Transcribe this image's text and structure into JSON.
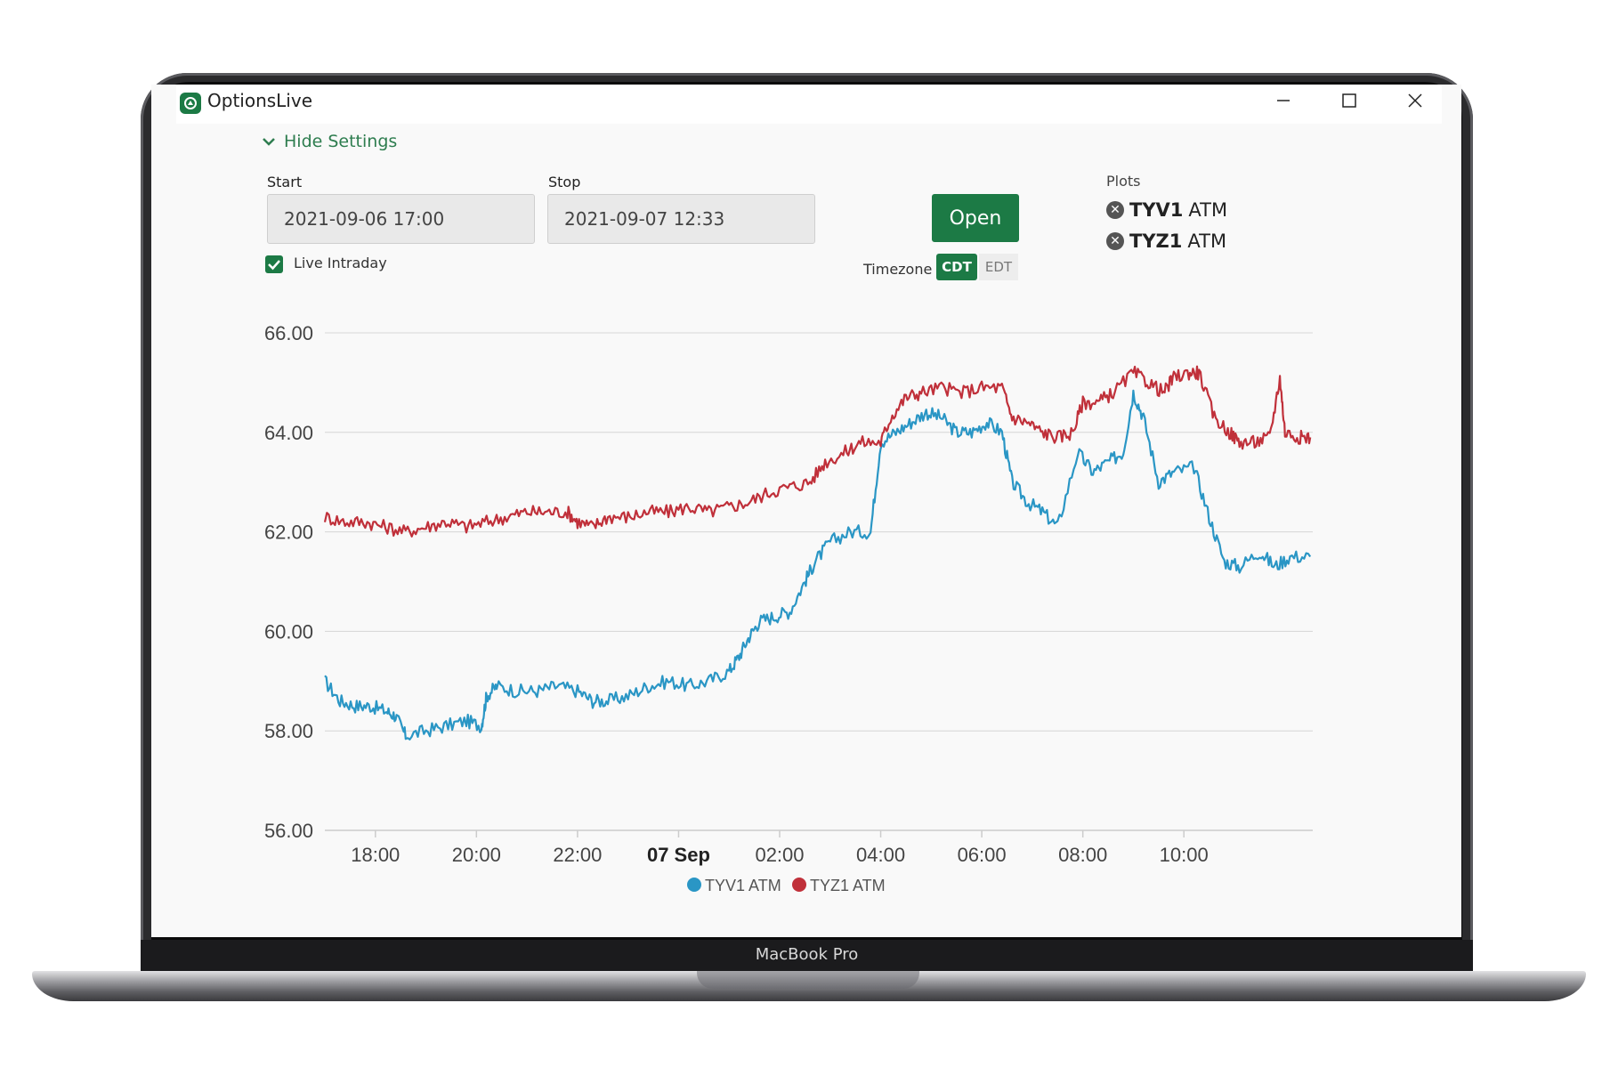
{
  "device": {
    "label": "MacBook Pro"
  },
  "window": {
    "title": "OptionsLive",
    "controls": [
      "minimize-icon",
      "maximize-icon",
      "close-icon"
    ]
  },
  "settings": {
    "toggle_label": "Hide Settings",
    "start_label": "Start",
    "start_value": "2021-09-06 17:00",
    "stop_label": "Stop",
    "stop_value": "2021-09-07 12:33",
    "live_intraday_label": "Live Intraday",
    "live_intraday_checked": true,
    "open_label": "Open",
    "timezone_label": "Timezone",
    "timezone_options": [
      "CDT",
      "EDT"
    ],
    "timezone_selected": "CDT",
    "plots_label": "Plots",
    "plots": [
      {
        "symbol": "TYV1",
        "suffix": "ATM"
      },
      {
        "symbol": "TYZ1",
        "suffix": "ATM"
      }
    ]
  },
  "colors": {
    "accent": "#1c7a45",
    "tyv1": "#2a96c5",
    "tyz1": "#c0303a"
  },
  "chart_data": {
    "type": "line",
    "ylim": [
      56,
      66
    ],
    "y_ticks": [
      "56.00",
      "58.00",
      "60.00",
      "62.00",
      "64.00",
      "66.00"
    ],
    "x_range_hours": [
      17,
      36.55
    ],
    "x_ticks": [
      {
        "label": "18:00",
        "hour": 18,
        "bold": false
      },
      {
        "label": "20:00",
        "hour": 20,
        "bold": false
      },
      {
        "label": "22:00",
        "hour": 22,
        "bold": false
      },
      {
        "label": "07 Sep",
        "hour": 24,
        "bold": true
      },
      {
        "label": "02:00",
        "hour": 26,
        "bold": false
      },
      {
        "label": "04:00",
        "hour": 28,
        "bold": false
      },
      {
        "label": "06:00",
        "hour": 30,
        "bold": false
      },
      {
        "label": "08:00",
        "hour": 32,
        "bold": false
      },
      {
        "label": "10:00",
        "hour": 34,
        "bold": false
      }
    ],
    "grid": true,
    "legend_position": "bottom-center",
    "series": [
      {
        "name": "TYV1 ATM",
        "color": "#2a96c5",
        "points": [
          [
            17.0,
            59.0
          ],
          [
            17.3,
            58.6
          ],
          [
            17.6,
            58.5
          ],
          [
            17.9,
            58.5
          ],
          [
            18.2,
            58.4
          ],
          [
            18.4,
            58.3
          ],
          [
            18.6,
            57.9
          ],
          [
            19.0,
            58.0
          ],
          [
            19.4,
            58.1
          ],
          [
            19.8,
            58.2
          ],
          [
            20.1,
            58.1
          ],
          [
            20.2,
            58.7
          ],
          [
            20.4,
            58.9
          ],
          [
            20.8,
            58.8
          ],
          [
            21.2,
            58.8
          ],
          [
            21.6,
            58.9
          ],
          [
            22.0,
            58.8
          ],
          [
            22.3,
            58.6
          ],
          [
            22.6,
            58.6
          ],
          [
            23.0,
            58.7
          ],
          [
            23.4,
            58.9
          ],
          [
            23.8,
            59.0
          ],
          [
            24.2,
            58.9
          ],
          [
            24.6,
            59.0
          ],
          [
            25.0,
            59.2
          ],
          [
            25.2,
            59.5
          ],
          [
            25.4,
            59.9
          ],
          [
            25.6,
            60.2
          ],
          [
            25.9,
            60.3
          ],
          [
            26.2,
            60.4
          ],
          [
            26.5,
            61.0
          ],
          [
            26.7,
            61.4
          ],
          [
            27.0,
            61.8
          ],
          [
            27.4,
            62.0
          ],
          [
            27.8,
            62.0
          ],
          [
            28.0,
            63.8
          ],
          [
            28.3,
            64.0
          ],
          [
            28.6,
            64.2
          ],
          [
            28.9,
            64.4
          ],
          [
            29.2,
            64.3
          ],
          [
            29.5,
            64.0
          ],
          [
            29.8,
            64.0
          ],
          [
            30.1,
            64.2
          ],
          [
            30.4,
            64.0
          ],
          [
            30.6,
            63.0
          ],
          [
            30.9,
            62.6
          ],
          [
            31.2,
            62.4
          ],
          [
            31.5,
            62.1
          ],
          [
            31.9,
            63.6
          ],
          [
            32.2,
            63.2
          ],
          [
            32.5,
            63.4
          ],
          [
            32.8,
            63.6
          ],
          [
            33.0,
            64.8
          ],
          [
            33.2,
            64.3
          ],
          [
            33.5,
            63.0
          ],
          [
            33.8,
            63.2
          ],
          [
            34.2,
            63.3
          ],
          [
            34.5,
            62.3
          ],
          [
            34.8,
            61.4
          ],
          [
            35.1,
            61.3
          ],
          [
            35.5,
            61.6
          ],
          [
            35.8,
            61.3
          ],
          [
            36.1,
            61.5
          ],
          [
            36.5,
            61.5
          ]
        ]
      },
      {
        "name": "TYZ1 ATM",
        "color": "#c0303a",
        "points": [
          [
            17.0,
            62.3
          ],
          [
            17.4,
            62.2
          ],
          [
            17.8,
            62.2
          ],
          [
            18.2,
            62.1
          ],
          [
            18.6,
            62.0
          ],
          [
            19.0,
            62.1
          ],
          [
            19.4,
            62.2
          ],
          [
            19.8,
            62.1
          ],
          [
            20.2,
            62.2
          ],
          [
            20.6,
            62.3
          ],
          [
            21.0,
            62.4
          ],
          [
            21.4,
            62.4
          ],
          [
            21.8,
            62.4
          ],
          [
            22.0,
            62.2
          ],
          [
            22.3,
            62.1
          ],
          [
            22.6,
            62.3
          ],
          [
            23.0,
            62.3
          ],
          [
            23.4,
            62.4
          ],
          [
            23.8,
            62.4
          ],
          [
            24.2,
            62.5
          ],
          [
            24.6,
            62.4
          ],
          [
            25.0,
            62.5
          ],
          [
            25.4,
            62.6
          ],
          [
            25.8,
            62.8
          ],
          [
            26.2,
            62.9
          ],
          [
            26.6,
            63.0
          ],
          [
            26.9,
            63.4
          ],
          [
            27.3,
            63.6
          ],
          [
            27.6,
            63.8
          ],
          [
            28.0,
            63.8
          ],
          [
            28.2,
            64.3
          ],
          [
            28.5,
            64.7
          ],
          [
            28.8,
            64.8
          ],
          [
            29.2,
            64.9
          ],
          [
            29.6,
            64.8
          ],
          [
            30.0,
            64.9
          ],
          [
            30.4,
            64.9
          ],
          [
            30.6,
            64.3
          ],
          [
            30.9,
            64.2
          ],
          [
            31.2,
            64.0
          ],
          [
            31.5,
            63.9
          ],
          [
            31.8,
            64.0
          ],
          [
            32.0,
            64.6
          ],
          [
            32.3,
            64.6
          ],
          [
            32.6,
            64.8
          ],
          [
            33.0,
            65.2
          ],
          [
            33.3,
            65.0
          ],
          [
            33.6,
            64.8
          ],
          [
            33.8,
            65.1
          ],
          [
            34.1,
            65.2
          ],
          [
            34.3,
            65.2
          ],
          [
            34.6,
            64.3
          ],
          [
            34.9,
            64.0
          ],
          [
            35.1,
            63.8
          ],
          [
            35.4,
            63.8
          ],
          [
            35.7,
            63.9
          ],
          [
            35.9,
            65.1
          ],
          [
            36.0,
            64.0
          ],
          [
            36.3,
            63.9
          ],
          [
            36.5,
            63.9
          ]
        ]
      }
    ]
  }
}
